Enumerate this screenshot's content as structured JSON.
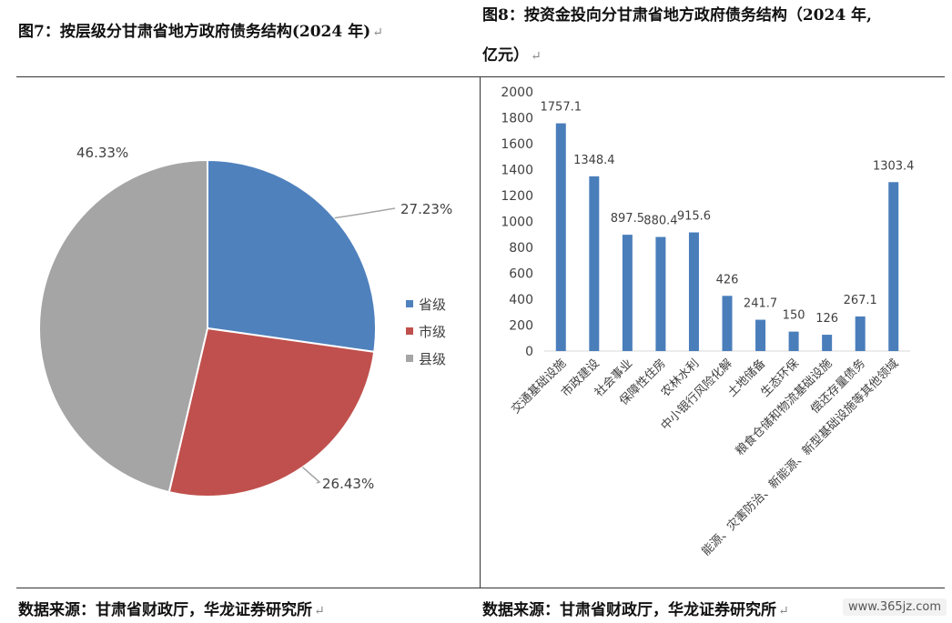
{
  "left_title": "图7：按层级分甘肃省地方政府债务结构(2024 年)",
  "right_title_line1": "图8：按资金投向分甘肃省地方政府债务结构（2024 年,",
  "right_title_line2": "亿元）",
  "return_mark": "↵",
  "left_source": "数据来源：甘肃省财政厅，华龙证券研究所",
  "right_source": "数据来源：甘肃省财政厅，华龙证券研究所",
  "watermark": "www.365jz.com",
  "chart_data": [
    {
      "type": "pie",
      "labels": [
        "省级",
        "市级",
        "县级"
      ],
      "values": [
        27.23,
        26.43,
        46.33
      ],
      "value_labels": [
        "27.23%",
        "26.43%",
        "46.33%"
      ],
      "colors": [
        "#4f81bd",
        "#c0504d",
        "#a5a5a5"
      ],
      "legend_position": "right"
    },
    {
      "type": "bar",
      "categories": [
        "交通基础设施",
        "市政建设",
        "社会事业",
        "保障性住房",
        "农林水利",
        "中小银行风险化解",
        "土地储备",
        "生态环保",
        "粮食仓储和物流基础设施",
        "偿还存量债务",
        "能源、灾害防治、新能源、新型基础设施等其他领域"
      ],
      "values": [
        1757.1,
        1348.4,
        897.5,
        880.4,
        915.6,
        426,
        241.7,
        150,
        126,
        267.1,
        1303.4
      ],
      "value_labels": [
        "1757.1",
        "1348.4",
        "897.5",
        "880.4",
        "915.6",
        "426",
        "241.7",
        "150",
        "126",
        "267.1",
        "1303.4"
      ],
      "ylim": [
        0,
        2000
      ],
      "yticks": [
        "0",
        "200",
        "400",
        "600",
        "800",
        "1000",
        "1200",
        "1400",
        "1600",
        "1800",
        "2000"
      ],
      "bar_color": "#4a7ebb",
      "grid": false
    }
  ]
}
